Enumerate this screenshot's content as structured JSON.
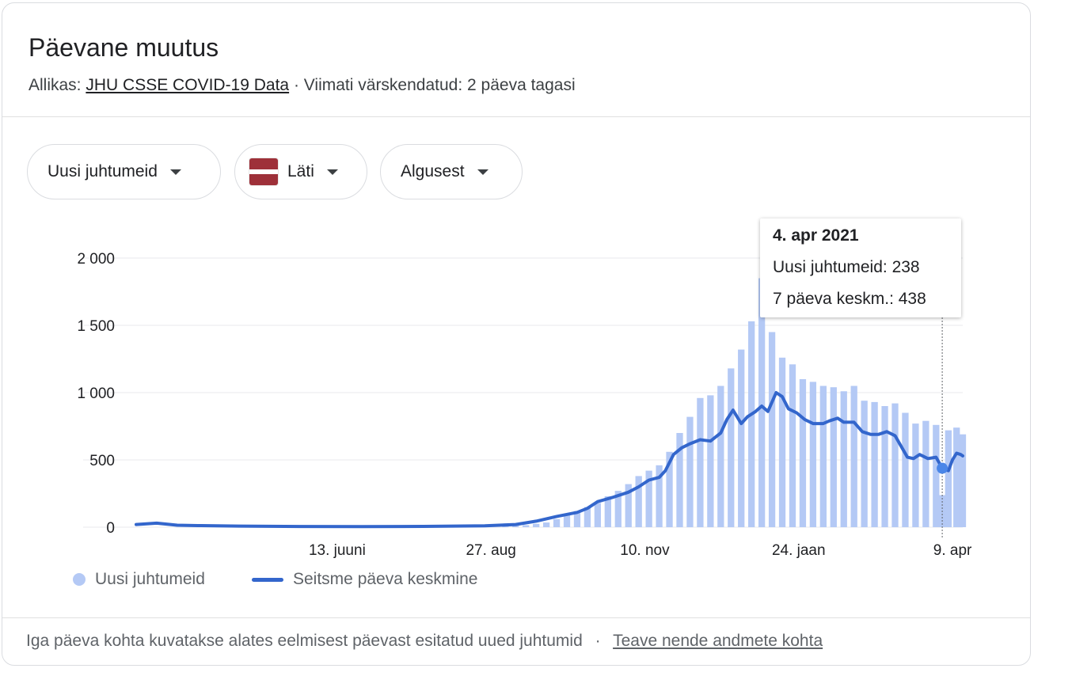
{
  "header": {
    "title": "Päevane muutus",
    "source_prefix": "Allikas:",
    "source_link": "JHU CSSE COVID-19 Data",
    "updated": "· Viimati värskendatud: 2 päeva tagasi"
  },
  "filters": {
    "metric": "Uusi juhtumeid",
    "country": "Läti",
    "period": "Algusest"
  },
  "flag_colors": {
    "top": "#9e3039",
    "middle": "#ffffff",
    "bottom": "#9e3039"
  },
  "tooltip": {
    "date": "4. apr 2021",
    "new_cases": "Uusi juhtumeid: 238",
    "avg": "7 päeva keskm.: 438"
  },
  "legend": {
    "bars": "Uusi juhtumeid",
    "line": "Seitsme päeva keskmine"
  },
  "footer": {
    "text": "Iga päeva kohta kuvatakse alates eelmisest päevast esitatud uued juhtumid",
    "separator": "·",
    "link": "Teave nende andmete kohta"
  },
  "colors": {
    "bar": "#b4c9f5",
    "line": "#3366cc",
    "grid": "#e8eaed"
  },
  "chart_data": {
    "type": "bar",
    "ylim": [
      0,
      2000
    ],
    "y_ticks": [
      0,
      500,
      1000,
      1500,
      2000
    ],
    "y_tick_labels": [
      "0",
      "500",
      "1 000",
      "1 500",
      "2 000"
    ],
    "x_tick_labels": [
      {
        "label": "13. juuni",
        "day": 98
      },
      {
        "label": "27. aug",
        "day": 173
      },
      {
        "label": "10. nov",
        "day": 248
      },
      {
        "label": "24. jaan",
        "day": 323
      },
      {
        "label": "9. apr",
        "day": 398
      }
    ],
    "start_date": "2020-03-07",
    "num_days": 403,
    "highlight_day": 393,
    "bars": [
      {
        "day": 180,
        "value": 5
      },
      {
        "day": 185,
        "value": 10
      },
      {
        "day": 190,
        "value": 15
      },
      {
        "day": 195,
        "value": 25
      },
      {
        "day": 200,
        "value": 35
      },
      {
        "day": 205,
        "value": 60
      },
      {
        "day": 210,
        "value": 90
      },
      {
        "day": 215,
        "value": 120
      },
      {
        "day": 220,
        "value": 150
      },
      {
        "day": 225,
        "value": 180
      },
      {
        "day": 230,
        "value": 230
      },
      {
        "day": 235,
        "value": 270
      },
      {
        "day": 240,
        "value": 320
      },
      {
        "day": 245,
        "value": 380
      },
      {
        "day": 250,
        "value": 420
      },
      {
        "day": 255,
        "value": 460
      },
      {
        "day": 260,
        "value": 560
      },
      {
        "day": 265,
        "value": 700
      },
      {
        "day": 270,
        "value": 820
      },
      {
        "day": 275,
        "value": 960
      },
      {
        "day": 280,
        "value": 980
      },
      {
        "day": 285,
        "value": 1050
      },
      {
        "day": 290,
        "value": 1180
      },
      {
        "day": 295,
        "value": 1320
      },
      {
        "day": 300,
        "value": 1530
      },
      {
        "day": 305,
        "value": 1850
      },
      {
        "day": 310,
        "value": 1450
      },
      {
        "day": 315,
        "value": 1260
      },
      {
        "day": 320,
        "value": 1210
      },
      {
        "day": 325,
        "value": 1100
      },
      {
        "day": 330,
        "value": 1080
      },
      {
        "day": 335,
        "value": 1050
      },
      {
        "day": 340,
        "value": 1040
      },
      {
        "day": 345,
        "value": 1010
      },
      {
        "day": 350,
        "value": 1050
      },
      {
        "day": 355,
        "value": 940
      },
      {
        "day": 360,
        "value": 930
      },
      {
        "day": 365,
        "value": 900
      },
      {
        "day": 370,
        "value": 920
      },
      {
        "day": 375,
        "value": 850
      },
      {
        "day": 380,
        "value": 770
      },
      {
        "day": 385,
        "value": 790
      },
      {
        "day": 390,
        "value": 760
      },
      {
        "day": 393,
        "value": 238
      },
      {
        "day": 396,
        "value": 720
      },
      {
        "day": 400,
        "value": 740
      },
      {
        "day": 403,
        "value": 690
      }
    ],
    "series": [
      {
        "name": "Seitsme päeva keskmine",
        "points": [
          {
            "day": 0,
            "value": 20
          },
          {
            "day": 10,
            "value": 30
          },
          {
            "day": 20,
            "value": 15
          },
          {
            "day": 30,
            "value": 12
          },
          {
            "day": 50,
            "value": 8
          },
          {
            "day": 80,
            "value": 5
          },
          {
            "day": 110,
            "value": 4
          },
          {
            "day": 140,
            "value": 6
          },
          {
            "day": 170,
            "value": 10
          },
          {
            "day": 185,
            "value": 20
          },
          {
            "day": 195,
            "value": 45
          },
          {
            "day": 205,
            "value": 80
          },
          {
            "day": 215,
            "value": 110
          },
          {
            "day": 220,
            "value": 140
          },
          {
            "day": 225,
            "value": 190
          },
          {
            "day": 232,
            "value": 220
          },
          {
            "day": 240,
            "value": 260
          },
          {
            "day": 245,
            "value": 300
          },
          {
            "day": 250,
            "value": 350
          },
          {
            "day": 255,
            "value": 370
          },
          {
            "day": 258,
            "value": 420
          },
          {
            "day": 262,
            "value": 540
          },
          {
            "day": 266,
            "value": 590
          },
          {
            "day": 270,
            "value": 620
          },
          {
            "day": 275,
            "value": 650
          },
          {
            "day": 280,
            "value": 640
          },
          {
            "day": 285,
            "value": 700
          },
          {
            "day": 288,
            "value": 800
          },
          {
            "day": 291,
            "value": 870
          },
          {
            "day": 295,
            "value": 770
          },
          {
            "day": 298,
            "value": 820
          },
          {
            "day": 302,
            "value": 860
          },
          {
            "day": 305,
            "value": 900
          },
          {
            "day": 308,
            "value": 860
          },
          {
            "day": 312,
            "value": 1000
          },
          {
            "day": 315,
            "value": 970
          },
          {
            "day": 318,
            "value": 880
          },
          {
            "day": 322,
            "value": 850
          },
          {
            "day": 326,
            "value": 800
          },
          {
            "day": 330,
            "value": 770
          },
          {
            "day": 335,
            "value": 770
          },
          {
            "day": 338,
            "value": 790
          },
          {
            "day": 342,
            "value": 810
          },
          {
            "day": 345,
            "value": 780
          },
          {
            "day": 350,
            "value": 780
          },
          {
            "day": 354,
            "value": 710
          },
          {
            "day": 358,
            "value": 690
          },
          {
            "day": 362,
            "value": 690
          },
          {
            "day": 366,
            "value": 710
          },
          {
            "day": 370,
            "value": 680
          },
          {
            "day": 373,
            "value": 600
          },
          {
            "day": 376,
            "value": 520
          },
          {
            "day": 379,
            "value": 510
          },
          {
            "day": 382,
            "value": 540
          },
          {
            "day": 386,
            "value": 510
          },
          {
            "day": 390,
            "value": 520
          },
          {
            "day": 393,
            "value": 438
          },
          {
            "day": 396,
            "value": 420
          },
          {
            "day": 398,
            "value": 500
          },
          {
            "day": 400,
            "value": 550
          },
          {
            "day": 402,
            "value": 540
          },
          {
            "day": 403,
            "value": 530
          }
        ]
      }
    ]
  }
}
